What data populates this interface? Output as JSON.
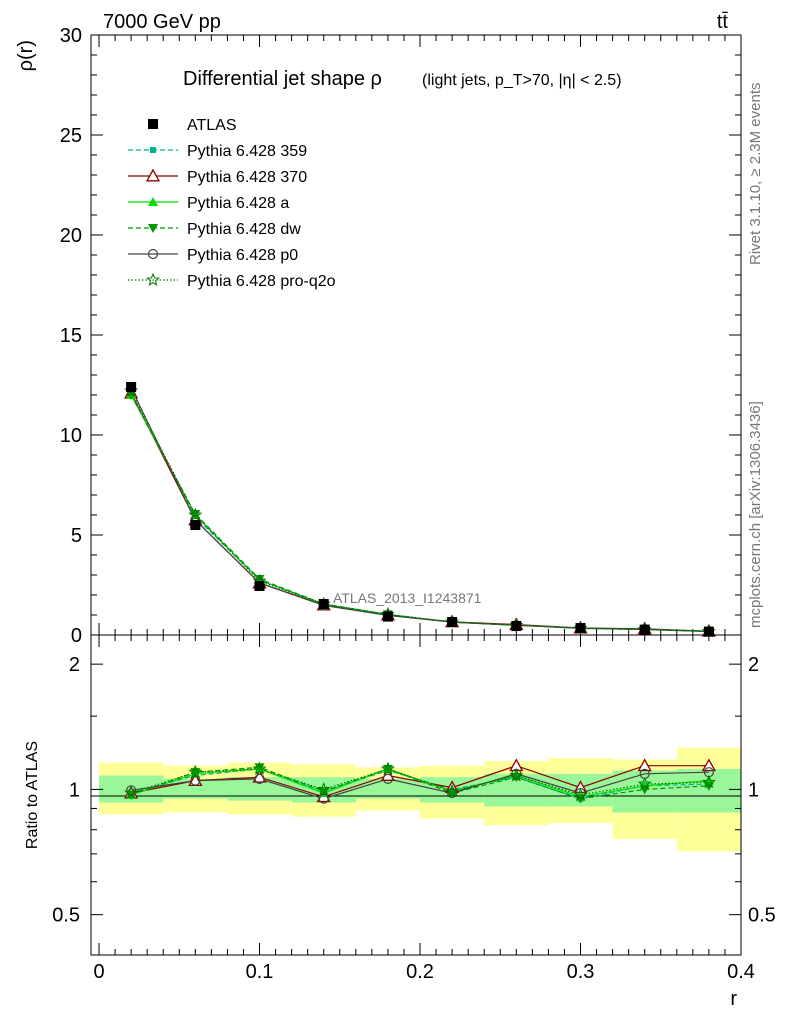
{
  "header": {
    "left": "7000 GeV pp",
    "right": "tt̄"
  },
  "side_text": {
    "rivet": "Rivet 3.1.10, ≥ 2.3M events",
    "mcplots": "mcplots.cern.ch [arXiv:1306.3436]"
  },
  "watermark": "ATLAS_2013_I1243871",
  "chart_data": [
    {
      "type": "line",
      "title": "Differential jet shape ρ",
      "subtitle": "(light jets, p_T>70, |η| < 2.5)",
      "ylabel": "ρ(r)",
      "xlim": [
        -0.005,
        0.4
      ],
      "ylim": [
        0,
        30
      ],
      "yticks": [
        "0",
        "5",
        "10",
        "15",
        "20",
        "25",
        "30"
      ],
      "legend_position": "top-left",
      "x": [
        0.02,
        0.06,
        0.1,
        0.14,
        0.18,
        0.22,
        0.26,
        0.3,
        0.34,
        0.38
      ],
      "series": [
        {
          "name": "ATLAS",
          "color": "#000000",
          "marker": "square",
          "line": "none",
          "values": [
            12.4,
            5.5,
            2.45,
            1.55,
            0.92,
            0.65,
            0.45,
            0.35,
            0.27,
            0.17
          ]
        },
        {
          "name": "Pythia 6.428 359",
          "color": "#00b38a",
          "marker": "small-square",
          "line": "dashed",
          "values": [
            12.1,
            5.9,
            2.75,
            1.55,
            1.02,
            0.65,
            0.49,
            0.33,
            0.27,
            0.17
          ]
        },
        {
          "name": "Pythia 6.428 370",
          "color": "#8b0000",
          "marker": "open-triangle",
          "line": "solid",
          "values": [
            12.1,
            5.75,
            2.6,
            1.5,
            1.0,
            0.66,
            0.52,
            0.35,
            0.31,
            0.19
          ]
        },
        {
          "name": "Pythia 6.428 a",
          "color": "#00dd00",
          "marker": "filled-triangle",
          "line": "solid",
          "values": [
            12.0,
            6.0,
            2.75,
            1.53,
            1.02,
            0.64,
            0.49,
            0.34,
            0.28,
            0.18
          ]
        },
        {
          "name": "Pythia 6.428 dw",
          "color": "#009900",
          "marker": "inverted-triangle",
          "line": "dashed",
          "values": [
            12.0,
            6.05,
            2.8,
            1.55,
            1.03,
            0.64,
            0.49,
            0.33,
            0.27,
            0.17
          ]
        },
        {
          "name": "Pythia 6.428 p0",
          "color": "#444444",
          "marker": "open-circle",
          "line": "solid",
          "values": [
            12.35,
            5.75,
            2.6,
            1.48,
            0.98,
            0.64,
            0.49,
            0.34,
            0.29,
            0.185
          ]
        },
        {
          "name": "Pythia 6.428 pro-q2o",
          "color": "#007700",
          "marker": "star",
          "line": "dotted",
          "values": [
            12.2,
            6.0,
            2.7,
            1.55,
            1.03,
            0.65,
            0.49,
            0.34,
            0.28,
            0.18
          ]
        }
      ]
    },
    {
      "type": "line",
      "ylabel": "Ratio to ATLAS",
      "xlabel": "r",
      "xlim": [
        -0.005,
        0.4
      ],
      "ylim": [
        0.4,
        2.35
      ],
      "ylog": true,
      "yticks": [
        0.5,
        1,
        2
      ],
      "yticklabels": [
        "0.5",
        "1",
        "2"
      ],
      "xticks": [
        0,
        0.1,
        0.2,
        0.3,
        0.4
      ],
      "xticklabels": [
        "0",
        "0.1",
        "0.2",
        "0.3",
        "0.4"
      ],
      "bin_edges": [
        0.0,
        0.04,
        0.08,
        0.12,
        0.16,
        0.2,
        0.24,
        0.28,
        0.32,
        0.36,
        0.4
      ],
      "band_inner": {
        "color": "#99f799",
        "lo": [
          0.93,
          0.95,
          0.94,
          0.93,
          0.95,
          0.93,
          0.91,
          0.91,
          0.88,
          0.88
        ],
        "hi": [
          1.08,
          1.06,
          1.07,
          1.07,
          1.06,
          1.07,
          1.09,
          1.09,
          1.11,
          1.12
        ]
      },
      "band_outer": {
        "color": "#ffff99",
        "lo": [
          0.87,
          0.88,
          0.87,
          0.86,
          0.89,
          0.85,
          0.82,
          0.83,
          0.76,
          0.71
        ],
        "hi": [
          1.16,
          1.14,
          1.16,
          1.15,
          1.13,
          1.14,
          1.17,
          1.19,
          1.18,
          1.26
        ]
      },
      "series": [
        {
          "name": "Pythia 6.428 359",
          "values": [
            0.98,
            1.08,
            1.12,
            0.99,
            1.11,
            1.0,
            1.07,
            0.95,
            1.02,
            1.03
          ]
        },
        {
          "name": "Pythia 6.428 370",
          "values": [
            0.98,
            1.05,
            1.07,
            0.96,
            1.08,
            1.01,
            1.14,
            1.01,
            1.14,
            1.14
          ]
        },
        {
          "name": "Pythia 6.428 a",
          "values": [
            0.97,
            1.09,
            1.12,
            0.98,
            1.12,
            0.99,
            1.08,
            0.96,
            1.02,
            1.05
          ]
        },
        {
          "name": "Pythia 6.428 dw",
          "values": [
            0.97,
            1.1,
            1.13,
            0.99,
            1.12,
            0.98,
            1.07,
            0.95,
            1.0,
            1.02
          ]
        },
        {
          "name": "Pythia 6.428 p0",
          "values": [
            0.995,
            1.05,
            1.06,
            0.95,
            1.06,
            0.98,
            1.09,
            0.98,
            1.09,
            1.1
          ]
        },
        {
          "name": "Pythia 6.428 pro-q2o",
          "values": [
            0.98,
            1.1,
            1.12,
            1.0,
            1.12,
            0.99,
            1.08,
            0.97,
            1.03,
            1.04
          ]
        }
      ]
    }
  ]
}
